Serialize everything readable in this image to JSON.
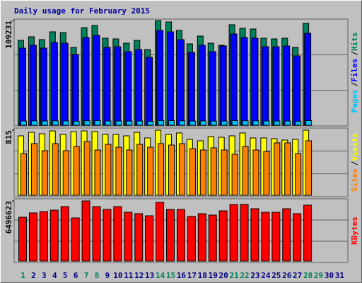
{
  "chart_data": [
    {
      "type": "bar",
      "title": "Daily usage for February 2015",
      "ylim": [
        0,
        109231
      ],
      "yticks": [
        109231
      ],
      "legend_separator": "/",
      "series": [
        {
          "name": "Hits",
          "color": "#00805c",
          "values": [
            88566,
            92256,
            89304,
            97423,
            96685,
            81185,
            101851,
            104065,
            90780,
            90042,
            85613,
            88566,
            78971,
            109231,
            107754,
            98898,
            84875,
            92994,
            85613,
            83400,
            104803,
            101113,
            100375,
            90780,
            90042,
            90780,
            81185,
            106279,
            null,
            null,
            null
          ]
        },
        {
          "name": "Files",
          "color": "#0000ff",
          "values": [
            80450,
            83400,
            80450,
            86350,
            85610,
            73800,
            91520,
            93730,
            81180,
            81920,
            76750,
            78970,
            70850,
            98890,
            97420,
            89300,
            76010,
            83400,
            76750,
            82660,
            95200,
            91510,
            90780,
            81920,
            81920,
            82660,
            72330,
            95940,
            null,
            null,
            null
          ]
        },
        {
          "name": "Pages",
          "color": "#00c0ff",
          "values": [
            4400,
            4500,
            4400,
            4600,
            4500,
            4100,
            4700,
            4800,
            4400,
            4400,
            4300,
            4400,
            4000,
            4900,
            4800,
            4600,
            4300,
            4500,
            4300,
            4300,
            4800,
            4700,
            4600,
            4400,
            4400,
            4400,
            4100,
            4800,
            null,
            null,
            null
          ]
        }
      ]
    },
    {
      "type": "bar",
      "ylim": [
        0,
        815
      ],
      "yticks": [
        815
      ],
      "legend_separator": "/",
      "series": [
        {
          "name": "Visits",
          "color": "#ffff00",
          "values": [
            744,
            788,
            771,
            806,
            762,
            797,
            806,
            797,
            762,
            762,
            744,
            788,
            718,
            815,
            762,
            780,
            700,
            682,
            735,
            726,
            744,
            780,
            718,
            718,
            709,
            691,
            700,
            815,
            null,
            null,
            null
          ]
        },
        {
          "name": "Sites",
          "color": "#ff8000",
          "values": [
            523,
            647,
            558,
            647,
            558,
            611,
            673,
            567,
            638,
            602,
            567,
            638,
            602,
            647,
            629,
            647,
            585,
            567,
            594,
            567,
            514,
            611,
            567,
            549,
            656,
            656,
            523,
            682,
            null,
            null,
            null
          ]
        }
      ]
    },
    {
      "type": "bar",
      "ylim": [
        0,
        6496623
      ],
      "yticks": [
        6496623
      ],
      "categories": [
        "1",
        "2",
        "3",
        "4",
        "5",
        "6",
        "7",
        "8",
        "9",
        "10",
        "11",
        "12",
        "13",
        "14",
        "15",
        "16",
        "17",
        "18",
        "19",
        "20",
        "21",
        "22",
        "23",
        "24",
        "25",
        "26",
        "27",
        "28",
        "29",
        "30",
        "31"
      ],
      "category_colors": [
        "#00805c",
        "#000080",
        "#000080",
        "#000080",
        "#000080",
        "#000080",
        "#00805c",
        "#00805c",
        "#000080",
        "#000080",
        "#000080",
        "#000080",
        "#000080",
        "#00805c",
        "#00805c",
        "#000080",
        "#000080",
        "#000080",
        "#000080",
        "#000080",
        "#00805c",
        "#00805c",
        "#000080",
        "#000080",
        "#000080",
        "#000080",
        "#000080",
        "#00805c",
        "#00805c",
        "#000080",
        "#000080"
      ],
      "series": [
        {
          "name": "KBytes",
          "color": "#ff0000",
          "values": [
            4738700,
            5197300,
            5350200,
            5503000,
            5885200,
            4662300,
            6496623,
            5885200,
            5579500,
            5885200,
            5273700,
            5120900,
            4891600,
            6343800,
            5579500,
            5579500,
            4815200,
            5120900,
            4968000,
            5426600,
            6114500,
            6114500,
            5655900,
            5273700,
            5273700,
            5655900,
            5120900,
            6038000,
            null,
            null,
            null
          ]
        }
      ]
    }
  ]
}
